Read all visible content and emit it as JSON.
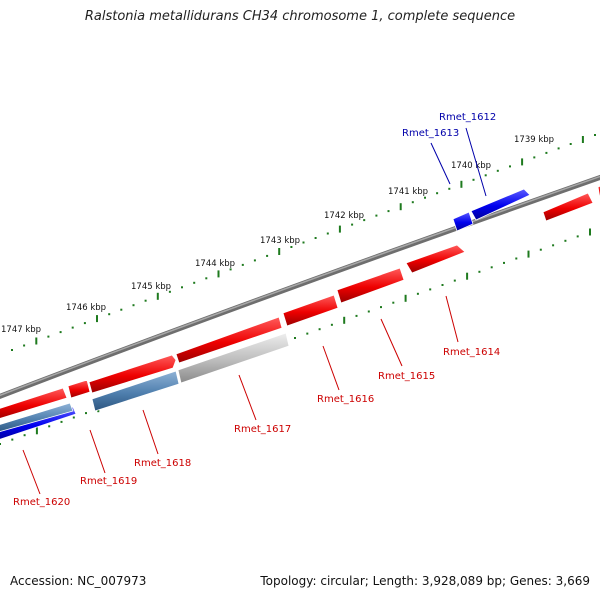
{
  "title": "Ralstonia metallidurans CH34 chromosome 1, complete sequence",
  "footer": {
    "accession": "Accession: NC_007973",
    "topology": "Topology: circular; Length: 3,928,089 bp; Genes: 3,669"
  },
  "colors": {
    "backbone": "#808080",
    "forward_gene": "#0000ee",
    "reverse_gene": "#ee0000",
    "rna_gene": "#4f7fae",
    "pseudo_gene": "#bcbcbc",
    "tick": "#1e7a1e",
    "forward_label": "#0000aa",
    "reverse_label": "#cc0000"
  },
  "ticks": [
    "1747 kbp",
    "1746 kbp",
    "1745 kbp",
    "1744 kbp",
    "1743 kbp",
    "1742 kbp",
    "1741 kbp",
    "1740 kbp",
    "1739 kbp"
  ],
  "genes": [
    {
      "id": "Rmet_1612",
      "strand": "+",
      "kind": "cds"
    },
    {
      "id": "Rmet_1613",
      "strand": "+",
      "kind": "cds"
    },
    {
      "id": "Rmet_1614",
      "strand": "-",
      "kind": "cds"
    },
    {
      "id": "Rmet_1615",
      "strand": "-",
      "kind": "cds"
    },
    {
      "id": "Rmet_1616",
      "strand": "-",
      "kind": "cds"
    },
    {
      "id": "Rmet_1617",
      "strand": "-",
      "kind": "pseudo"
    },
    {
      "id": "Rmet_1618",
      "strand": "-",
      "kind": "rna"
    },
    {
      "id": "Rmet_1619",
      "strand": "-",
      "kind": "cds"
    },
    {
      "id": "Rmet_1620",
      "strand": "+",
      "kind": "cds"
    }
  ]
}
